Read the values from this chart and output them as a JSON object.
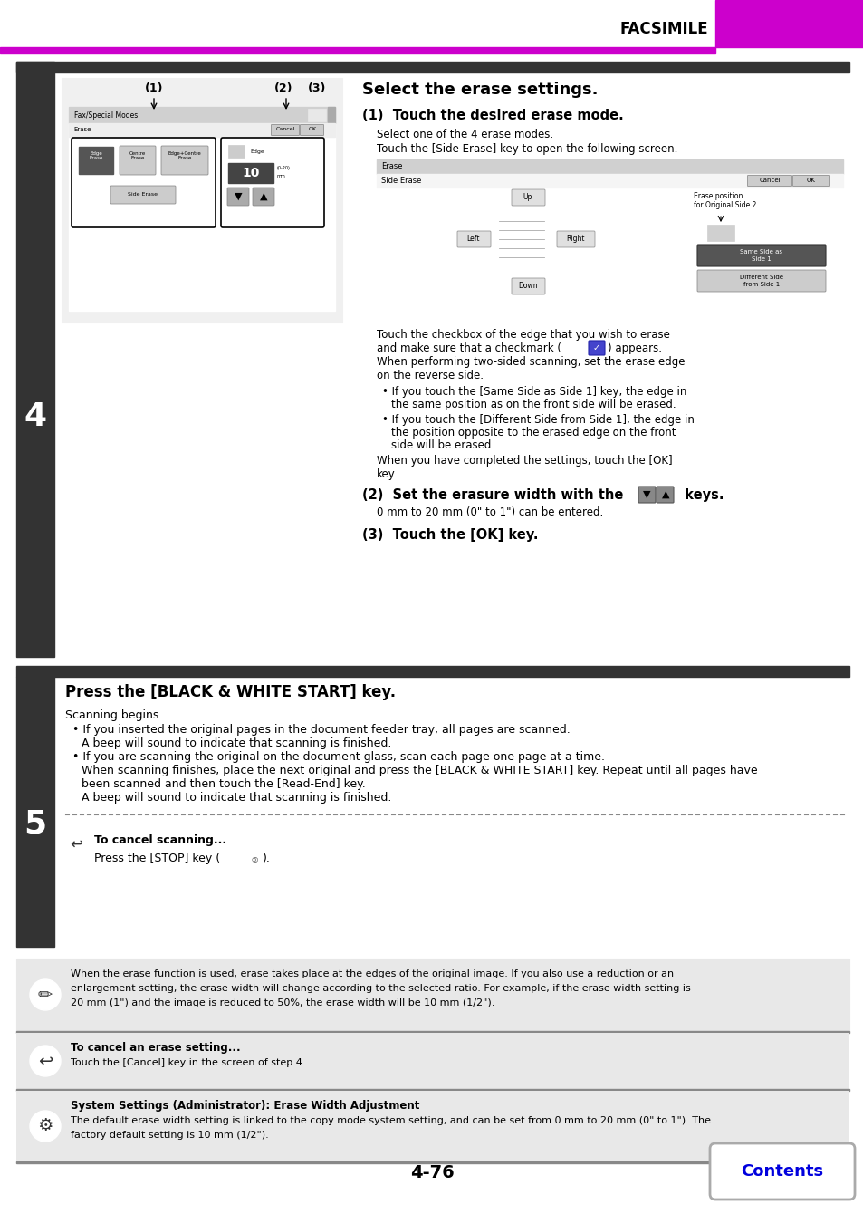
{
  "page_title": "FACSIMILE",
  "page_number": "4-76",
  "bg_color": "#ffffff",
  "purple": "#cc00cc",
  "dark_gray": "#333333",
  "light_gray": "#cccccc",
  "note_bg": "#e8e8e8",
  "contents_blue": "#0000dd",
  "sidebar_number_4": "4",
  "sidebar_number_5": "5",
  "section4_heading": "Select the erase settings.",
  "step1_heading": "(1)  Touch the desired erase mode.",
  "step1_line1": "Select one of the 4 erase modes.",
  "step1_line2": "Touch the [Side Erase] key to open the following screen.",
  "body_line1": "Touch the checkbox of the edge that you wish to erase",
  "body_line2": "and make sure that a checkmark (✓) appears.",
  "body_line3": "When performing two-sided scanning, set the erase edge",
  "body_line4": "on the reverse side.",
  "bullet1a": "• If you touch the [Same Side as Side 1] key, the edge in",
  "bullet1b": "  the same position as on the front side will be erased.",
  "bullet2a": "• If you touch the [Different Side from Side 1], the edge in",
  "bullet2b": "  the position opposite to the erased edge on the front",
  "bullet2c": "  side will be erased.",
  "body_line5": "When you have completed the settings, touch the [OK]",
  "body_line6": "key.",
  "step2_heading": "(2)  Set the erasure width with the",
  "step2_heading2": "keys.",
  "step2_text": "0 mm to 20 mm (0\" to 1\") can be entered.",
  "step3_heading": "(3)  Touch the [OK] key.",
  "section5_heading": "Press the [BLACK & WHITE START] key.",
  "s5_line1": "Scanning begins.",
  "s5_b1a": "• If you inserted the original pages in the document feeder tray, all pages are scanned.",
  "s5_b1b": "  A beep will sound to indicate that scanning is finished.",
  "s5_b2a": "• If you are scanning the original on the document glass, scan each page one page at a time.",
  "s5_b2b": "  When scanning finishes, place the next original and press the [BLACK & WHITE START] key. Repeat until all pages have",
  "s5_b2c": "  been scanned and then touch the [Read-End] key.",
  "s5_b2d": "  A beep will sound to indicate that scanning is finished.",
  "cancel_title": "To cancel scanning...",
  "cancel_text": "Press the [STOP] key (®).",
  "note1": "When the erase function is used, erase takes place at the edges of the original image. If you also use a reduction or an\nenlargement setting, the erase width will change according to the selected ratio. For example, if the erase width setting is\n20 mm (1\") and the image is reduced to 50%, the erase width will be 10 mm (1/2\").",
  "note2_bold": "To cancel an erase setting...",
  "note2_text": "Touch the [Cancel] key in the screen of step 4.",
  "note3_bold": "System Settings (Administrator): Erase Width Adjustment",
  "note3_text": "The default erase width setting is linked to the copy mode system setting, and can be set from 0 mm to 20 mm (0\" to 1\"). The\nfactory default setting is 10 mm (1/2\")."
}
